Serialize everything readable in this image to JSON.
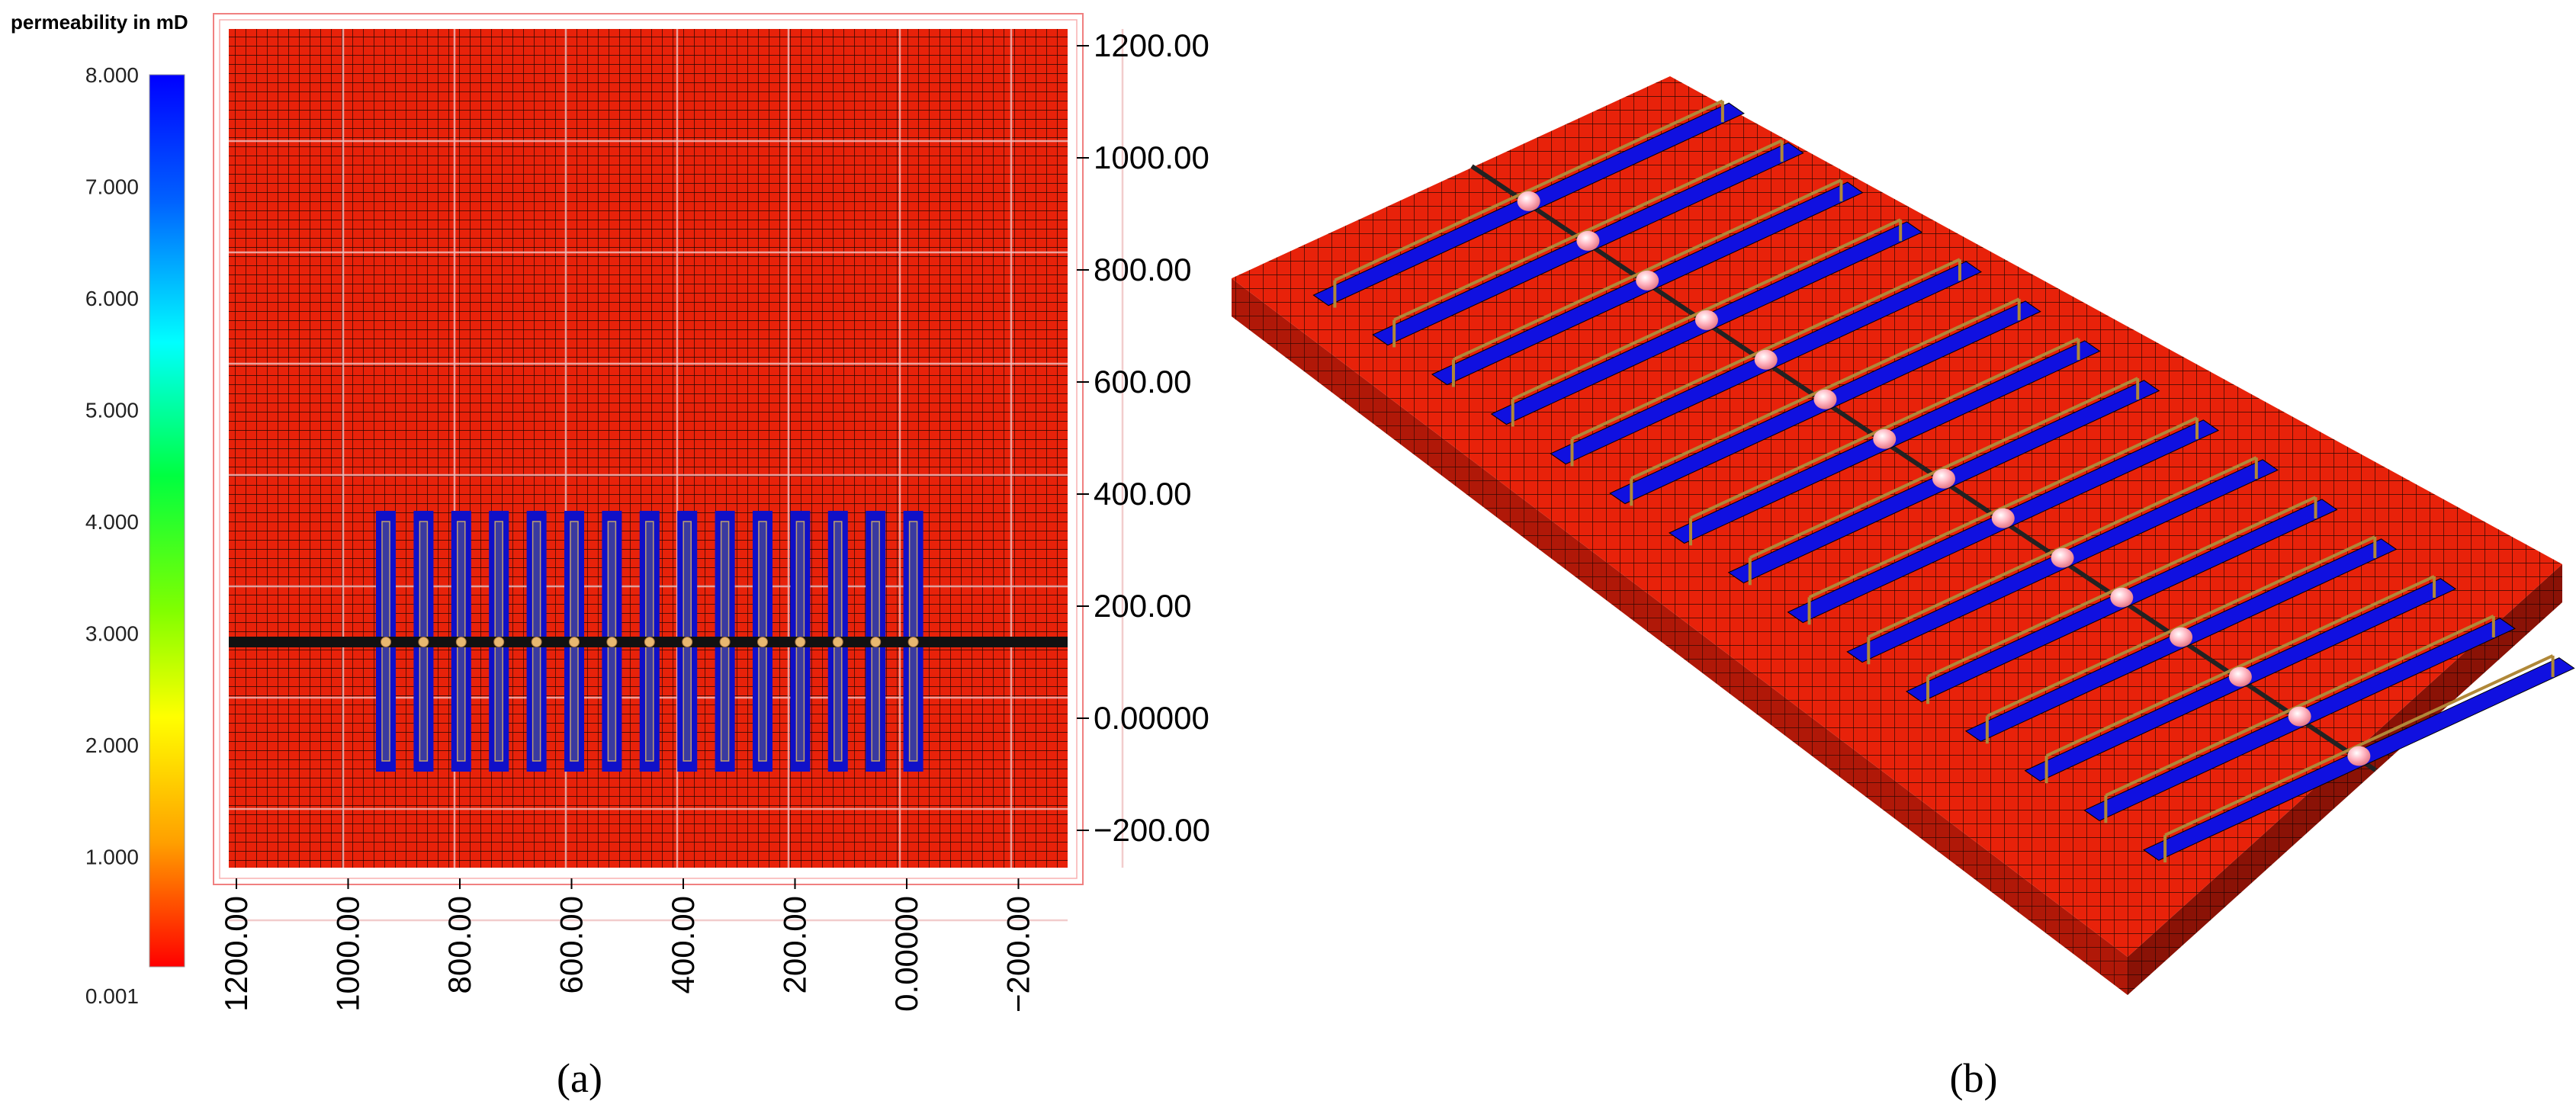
{
  "colorbar": {
    "title": "permeability  in mD",
    "ticks": [
      "8.000",
      "7.000",
      "6.000",
      "5.000",
      "4.000",
      "3.000",
      "2.000",
      "1.000",
      "0.001"
    ],
    "colors": [
      "#0000ff",
      "#00a0ff",
      "#00ffff",
      "#00ff00",
      "#a0ff00",
      "#ffff00",
      "#ffa000",
      "#ff0000"
    ]
  },
  "panel_a": {
    "caption": "(a)",
    "y_ticks": [
      "1200.00",
      "1000.00",
      "800.00",
      "600.00",
      "400.00",
      "200.00",
      "0.00000",
      "−200.00"
    ],
    "x_ticks": [
      "1200.00",
      "1000.00",
      "800.00",
      "600.00",
      "400.00",
      "200.00",
      "0.00000",
      "−200.00"
    ],
    "fracture_count": 15,
    "colors": {
      "matrix": "#e8220a",
      "fracture": "#1010c8",
      "wellbore": "#111111",
      "well_dot": "#e8b870",
      "grid": "#000000"
    }
  },
  "panel_b": {
    "caption": "(b)",
    "fracture_count": 15,
    "colors": {
      "matrix": "#e8220a",
      "fracture": "#1010e0",
      "side": "#b01808",
      "pipe": "#b08838",
      "bulb": "#ffb0b8"
    }
  }
}
